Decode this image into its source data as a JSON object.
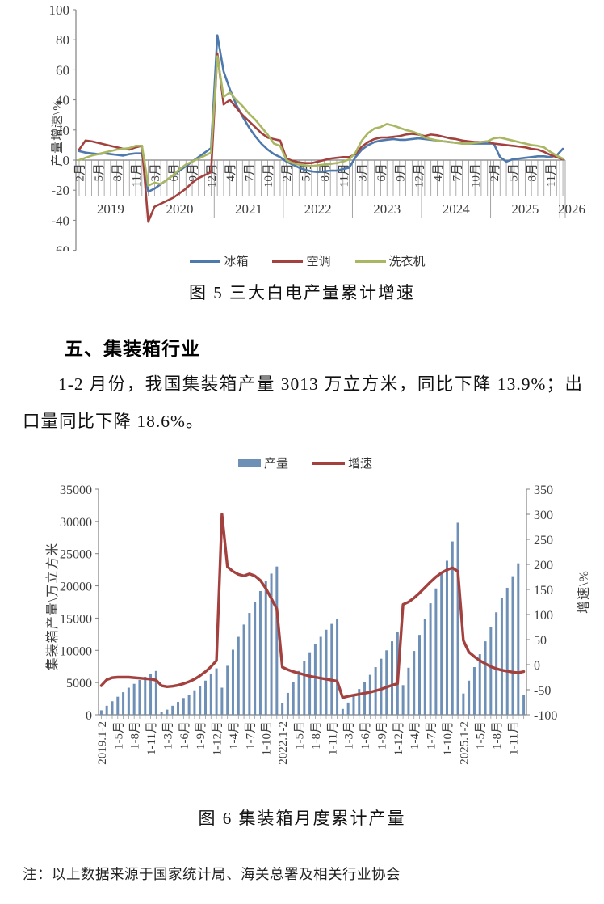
{
  "section": {
    "heading": "五、集装箱行业",
    "paragraph": "1-2 月份，我国集装箱产量 3013 万立方米，同比下降 13.9%；出口量同比下降 18.6%。"
  },
  "note": "注：以上数据来源于国家统计局、海关总署及相关行业协会",
  "colors": {
    "fridge_blue": "#4e79ad",
    "ac_red": "#a3413e",
    "washer_green": "#a9b662",
    "bar_blue": "#6e8fb6",
    "axis_gray": "#808080"
  },
  "chart_data": [
    {
      "type": "line",
      "caption": "图 5 三大白电产量累计增速",
      "ylabel": "产量增速\\%",
      "ylim": [
        -60,
        100
      ],
      "yticks": [
        100,
        80,
        60,
        40,
        20,
        0,
        -20,
        -40,
        -60
      ],
      "grid": false,
      "legend_position": "bottom",
      "x_tick_labels": [
        "2月",
        "5月",
        "8月",
        "11月",
        "3月",
        "6月",
        "9月",
        "12月",
        "4月",
        "7月",
        "10月",
        "2月",
        "5月",
        "8月",
        "11月",
        "3月",
        "6月",
        "9月",
        "12月",
        "4月",
        "7月",
        "10月",
        "2月",
        "5月",
        "8月",
        "11月"
      ],
      "year_labels": [
        "2019",
        "2020",
        "2021",
        "2022",
        "2023",
        "2024",
        "2025",
        "2026"
      ],
      "series": [
        {
          "name": "冰箱",
          "color": "#4e79ad",
          "values": [
            6,
            5,
            4.5,
            4,
            4.5,
            4,
            3.5,
            3,
            4,
            4.5,
            4.5,
            -21,
            -19,
            -16,
            -13,
            -10,
            -7,
            -4,
            -1,
            2,
            5,
            8,
            83,
            59,
            47,
            37,
            29,
            22,
            16,
            11,
            7,
            4,
            2,
            -1,
            -3,
            -5,
            -6.5,
            -7.5,
            -8,
            -7.5,
            -7,
            -7,
            -6,
            -5,
            2,
            7,
            10,
            12,
            13,
            13.5,
            14,
            13.5,
            13.5,
            14,
            14.5,
            14,
            13.5,
            13,
            12.5,
            12,
            11.5,
            11,
            11,
            11,
            11,
            11,
            11,
            2,
            -1,
            0.5,
            1,
            1.5,
            2,
            2.5,
            2.5,
            2,
            3,
            7.5
          ]
        },
        {
          "name": "空调",
          "color": "#a3413e",
          "values": [
            7,
            13,
            12.5,
            11.5,
            10.5,
            9.5,
            8.5,
            7.5,
            7,
            8.5,
            9.5,
            -41,
            -31,
            -29,
            -27,
            -25,
            -22,
            -19,
            -15,
            -12,
            -10,
            -8,
            71,
            37,
            40,
            35,
            30,
            26,
            22,
            18,
            15,
            14,
            13,
            1,
            -0.5,
            -1.5,
            -2,
            -2,
            -1,
            0,
            1,
            1.5,
            2,
            2,
            4,
            9,
            12,
            14,
            15,
            15,
            15.5,
            16,
            17,
            17.5,
            17,
            16,
            17,
            16.5,
            15.5,
            14.5,
            14,
            13,
            12.5,
            12,
            12,
            12.5,
            11,
            10.5,
            10,
            9.5,
            9,
            8.5,
            7.5,
            7,
            5.5,
            3.5,
            2,
            0.5
          ]
        },
        {
          "name": "洗衣机",
          "color": "#a9b662",
          "values": [
            0,
            1.5,
            3,
            4,
            5,
            6,
            7,
            7.5,
            8,
            9.5,
            9.5,
            -17,
            -15,
            -16,
            -13,
            -10,
            -6,
            -3,
            -1,
            1,
            3,
            5,
            69,
            42,
            45,
            40,
            36,
            31,
            27,
            22,
            17,
            11,
            9.5,
            0,
            -2,
            -3,
            -3.5,
            -4,
            -3.5,
            -3,
            -2.5,
            -2,
            -1,
            0.5,
            5,
            13,
            18,
            21,
            22,
            24,
            23,
            21.5,
            20,
            19,
            17.5,
            15,
            14,
            13,
            12.5,
            12,
            11.5,
            11,
            11,
            11.5,
            12,
            12.5,
            14.5,
            15,
            14,
            13,
            12,
            11,
            10,
            9.5,
            8.5,
            5.5,
            3,
            1
          ]
        }
      ]
    },
    {
      "type": "bar+line",
      "caption": "图 6 集装箱月度累计产量",
      "ylabel_left": "集装箱产量\\万立方米",
      "ylabel_right": "增速\\%",
      "ylim_left": [
        0,
        35000
      ],
      "yticks_left": [
        35000,
        30000,
        25000,
        20000,
        15000,
        10000,
        5000,
        0
      ],
      "ylim_right": [
        -100,
        350
      ],
      "yticks_right": [
        350,
        300,
        250,
        200,
        150,
        100,
        50,
        0,
        -50,
        -100
      ],
      "legend_position": "top",
      "x_tick_labels": [
        "2019.1-2",
        "1-5月",
        "1-8月",
        "1-11月",
        "1-3月",
        "1-6月",
        "1-9月",
        "1-12月",
        "1-4月",
        "1-7月",
        "1-10月",
        "2022.1-2",
        "1-5月",
        "1-8月",
        "1-11月",
        "1-3月",
        "1-6月",
        "1-9月",
        "1-12月",
        "1-4月",
        "1-7月",
        "1-10月",
        "2025.1-2",
        "1-5月",
        "1-8月",
        "1-11月"
      ],
      "bars": {
        "name": "产量",
        "color": "#6e8fb6",
        "values": [
          700,
          1400,
          2100,
          2800,
          3500,
          4200,
          4800,
          5400,
          5900,
          6300,
          6800,
          400,
          800,
          1400,
          2000,
          2600,
          3100,
          3800,
          4500,
          5300,
          6400,
          7200,
          4200,
          7600,
          10100,
          12100,
          14000,
          15800,
          17500,
          19200,
          20800,
          21900,
          23000,
          1800,
          3400,
          5100,
          6800,
          8300,
          9700,
          11000,
          12100,
          13200,
          14100,
          14800,
          900,
          1900,
          2900,
          4000,
          5100,
          6200,
          7400,
          8700,
          10000,
          11400,
          12800,
          4600,
          7300,
          9900,
          12400,
          14900,
          17300,
          19600,
          21900,
          23900,
          26900,
          29800,
          3300,
          5300,
          7400,
          9400,
          11400,
          13600,
          15900,
          18100,
          19700,
          21500,
          23500,
          3013
        ]
      },
      "line": {
        "name": "增速",
        "color": "#a3413e",
        "values": [
          -42,
          -30,
          -26,
          -25,
          -25,
          -25,
          -26,
          -27,
          -28,
          -29,
          -31,
          -42,
          -44,
          -43,
          -41,
          -38,
          -34,
          -29,
          -22,
          -14,
          -4,
          8,
          300,
          195,
          186,
          180,
          177,
          181,
          177,
          168,
          152,
          132,
          111,
          -5,
          -10,
          -14,
          -17,
          -20,
          -23,
          -25,
          -27,
          -29,
          -31,
          -33,
          -66,
          -63,
          -61,
          -59,
          -57,
          -55,
          -52,
          -49,
          -45,
          -41,
          -38,
          120,
          125,
          133,
          143,
          154,
          165,
          175,
          183,
          189,
          193,
          186,
          48,
          25,
          16,
          8,
          2,
          -4,
          -8,
          -11,
          -13,
          -15,
          -16,
          -13.9
        ]
      }
    }
  ]
}
